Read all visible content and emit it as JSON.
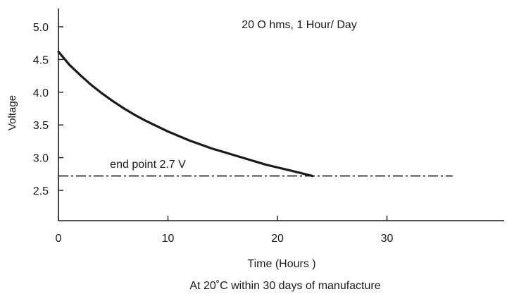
{
  "chart_data": {
    "type": "line",
    "title": "20 O hms, 1 Hour/ Day",
    "xlabel": "Time (Hours )",
    "ylabel": "Voltage",
    "footnote": "At 20˚C  within 30 days of manufacture",
    "xlim": [
      0,
      40
    ],
    "ylim": [
      2.0,
      5.3
    ],
    "xticks": [
      0,
      10,
      20,
      30
    ],
    "yticks": [
      2.5,
      3.0,
      3.5,
      4.0,
      4.5,
      5.0
    ],
    "xtick_labels": [
      "0",
      "10",
      "20",
      "30"
    ],
    "ytick_labels": [
      "2.5",
      "3.0",
      "3.5",
      "4.0",
      "4.5",
      "5.0"
    ],
    "grid": false,
    "series": [
      {
        "x": [
          0,
          1,
          2,
          3,
          4,
          5,
          6,
          7,
          8,
          9,
          10,
          11,
          12,
          13,
          14,
          15,
          16,
          17,
          18,
          19,
          20,
          21,
          22,
          23.2
        ],
        "y": [
          4.62,
          4.42,
          4.26,
          4.11,
          3.98,
          3.86,
          3.75,
          3.65,
          3.56,
          3.48,
          3.4,
          3.33,
          3.26,
          3.2,
          3.14,
          3.09,
          3.04,
          2.99,
          2.94,
          2.89,
          2.85,
          2.81,
          2.77,
          2.72
        ]
      }
    ],
    "reference_line": {
      "y": 2.72,
      "x_start": 0,
      "x_end": 36,
      "label": "end point 2.7 V"
    },
    "colors": {
      "line": "#1a1a1a",
      "axis": "#1a1a1a"
    }
  }
}
